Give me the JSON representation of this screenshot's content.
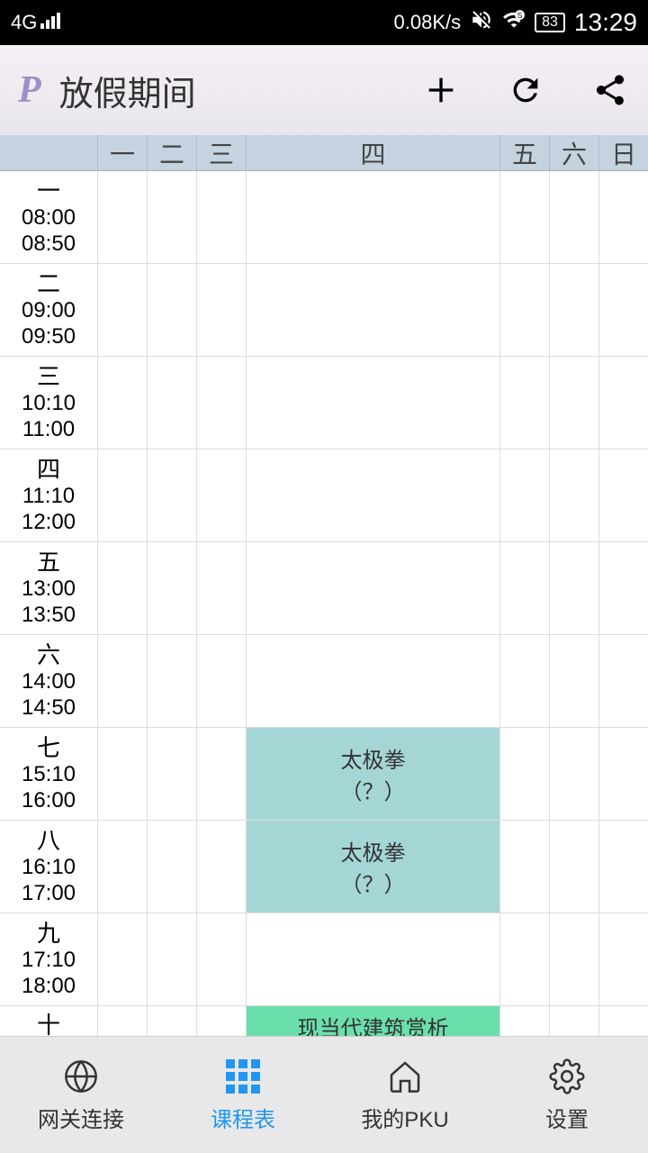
{
  "status_bar": {
    "network": "4G",
    "speed": "0.08K/s",
    "battery": "83",
    "time": "13:29"
  },
  "header": {
    "logo": "P",
    "title": "放假期间"
  },
  "days": [
    "一",
    "二",
    "三",
    "四",
    "五",
    "六",
    "日"
  ],
  "periods": [
    {
      "num": "一",
      "start": "08:00",
      "end": "08:50"
    },
    {
      "num": "二",
      "start": "09:00",
      "end": "09:50"
    },
    {
      "num": "三",
      "start": "10:10",
      "end": "11:00"
    },
    {
      "num": "四",
      "start": "11:10",
      "end": "12:00"
    },
    {
      "num": "五",
      "start": "13:00",
      "end": "13:50"
    },
    {
      "num": "六",
      "start": "14:00",
      "end": "14:50"
    },
    {
      "num": "七",
      "start": "15:10",
      "end": "16:00"
    },
    {
      "num": "八",
      "start": "16:10",
      "end": "17:00"
    },
    {
      "num": "九",
      "start": "17:10",
      "end": "18:00"
    },
    {
      "num": "十",
      "start": "",
      "end": ""
    }
  ],
  "courses": {
    "p7_d4": {
      "name": "太极拳",
      "room": "（？）",
      "color": "teal"
    },
    "p8_d4": {
      "name": "太极拳",
      "room": "（？）",
      "color": "teal"
    },
    "p10_d4": {
      "name": "现当代建筑赏析",
      "room": "",
      "color": "green"
    }
  },
  "nav": {
    "gateway": "网关连接",
    "schedule": "课程表",
    "mypku": "我的PKU",
    "settings": "设置"
  },
  "colors": {
    "teal": "#a5d6d6",
    "green": "#6adfac",
    "day_header_bg": "#c5d3e0",
    "nav_active": "#2196f3"
  }
}
